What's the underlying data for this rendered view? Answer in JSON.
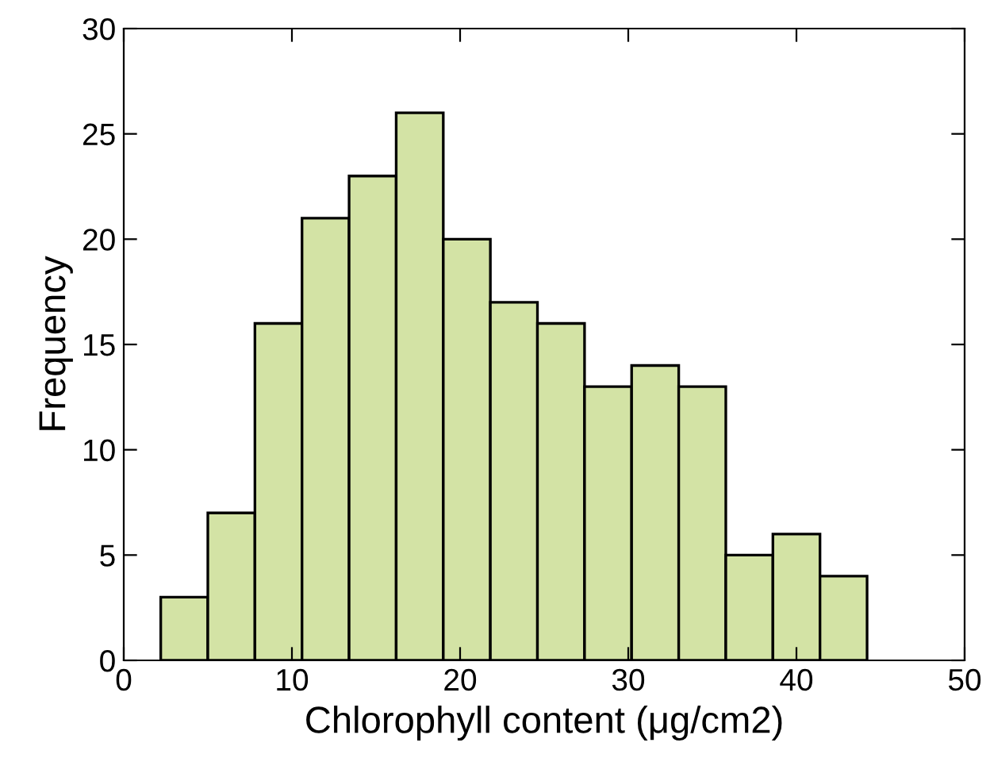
{
  "chart_data": {
    "type": "histogram",
    "xlabel": "Chlorophyll content (μg/cm2)",
    "ylabel": "Frequency",
    "bins": [
      2.2,
      5.0,
      7.8,
      10.6,
      13.4,
      16.2,
      19.0,
      21.8,
      24.6,
      27.4,
      30.2,
      33.0,
      35.8,
      38.6,
      41.4,
      44.2
    ],
    "values": [
      3,
      7,
      16,
      21,
      23,
      26,
      20,
      17,
      16,
      13,
      14,
      13,
      5,
      6,
      4
    ],
    "color": "#d3e3a5",
    "xlim": [
      0,
      50
    ],
    "xticks": [
      0,
      10,
      20,
      30,
      40,
      50
    ],
    "ylim": [
      0,
      30
    ],
    "yticks": [
      0,
      5,
      10,
      15,
      20,
      25,
      30
    ],
    "grid": false
  }
}
